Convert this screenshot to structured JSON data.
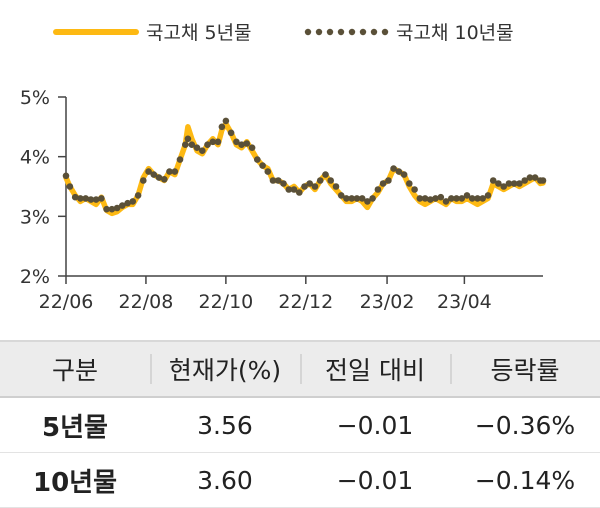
{
  "chart_data": {
    "type": "line",
    "legend": [
      {
        "name": "국고채 5년물",
        "style": "solid",
        "color": "#FDB913"
      },
      {
        "name": "국고채 10년물",
        "style": "dotted",
        "color": "#5a5038"
      }
    ],
    "legend_position": "top",
    "x_ticks": [
      "22/06",
      "22/08",
      "22/10",
      "22/12",
      "23/02",
      "23/04"
    ],
    "y_ticks": [
      "2%",
      "3%",
      "4%",
      "5%"
    ],
    "ylim": [
      2,
      5
    ],
    "xlim": [
      "2022-06-01",
      "2023-05-31"
    ],
    "grid": false,
    "series": [
      {
        "name": "국고채 5년물",
        "x": [
          "2022-06-01",
          "2022-06-04",
          "2022-06-08",
          "2022-06-12",
          "2022-06-16",
          "2022-06-20",
          "2022-06-24",
          "2022-06-28",
          "2022-07-02",
          "2022-07-06",
          "2022-07-10",
          "2022-07-14",
          "2022-07-18",
          "2022-07-22",
          "2022-07-26",
          "2022-07-30",
          "2022-08-03",
          "2022-08-07",
          "2022-08-11",
          "2022-08-15",
          "2022-08-19",
          "2022-08-23",
          "2022-08-27",
          "2022-08-31",
          "2022-09-02",
          "2022-09-05",
          "2022-09-09",
          "2022-09-13",
          "2022-09-17",
          "2022-09-21",
          "2022-09-25",
          "2022-09-28",
          "2022-10-01",
          "2022-10-05",
          "2022-10-09",
          "2022-10-13",
          "2022-10-17",
          "2022-10-21",
          "2022-10-25",
          "2022-10-29",
          "2022-11-02",
          "2022-11-06",
          "2022-11-10",
          "2022-11-14",
          "2022-11-18",
          "2022-11-22",
          "2022-11-26",
          "2022-11-30",
          "2022-12-04",
          "2022-12-08",
          "2022-12-12",
          "2022-12-16",
          "2022-12-20",
          "2022-12-24",
          "2022-12-28",
          "2023-01-01",
          "2023-01-05",
          "2023-01-09",
          "2023-01-13",
          "2023-01-17",
          "2023-01-21",
          "2023-01-25",
          "2023-01-29",
          "2023-02-02",
          "2023-02-06",
          "2023-02-10",
          "2023-02-14",
          "2023-02-18",
          "2023-02-22",
          "2023-02-26",
          "2023-03-02",
          "2023-03-06",
          "2023-03-10",
          "2023-03-14",
          "2023-03-18",
          "2023-03-22",
          "2023-03-26",
          "2023-03-30",
          "2023-04-03",
          "2023-04-07",
          "2023-04-11",
          "2023-04-15",
          "2023-04-19",
          "2023-04-23",
          "2023-04-27",
          "2023-05-01",
          "2023-05-05",
          "2023-05-09",
          "2023-05-13",
          "2023-05-17",
          "2023-05-21",
          "2023-05-25",
          "2023-05-29",
          "2023-05-31"
        ],
        "values": [
          3.65,
          3.5,
          3.35,
          3.25,
          3.3,
          3.25,
          3.2,
          3.32,
          3.1,
          3.05,
          3.08,
          3.15,
          3.2,
          3.2,
          3.35,
          3.65,
          3.8,
          3.7,
          3.65,
          3.6,
          3.75,
          3.7,
          3.95,
          4.2,
          4.5,
          4.3,
          4.1,
          4.05,
          4.2,
          4.3,
          4.2,
          4.45,
          4.55,
          4.4,
          4.2,
          4.15,
          4.25,
          4.1,
          3.95,
          3.85,
          3.8,
          3.6,
          3.6,
          3.55,
          3.45,
          3.5,
          3.4,
          3.5,
          3.55,
          3.45,
          3.6,
          3.7,
          3.55,
          3.45,
          3.35,
          3.25,
          3.25,
          3.3,
          3.25,
          3.15,
          3.3,
          3.4,
          3.55,
          3.6,
          3.8,
          3.75,
          3.7,
          3.5,
          3.35,
          3.25,
          3.2,
          3.25,
          3.3,
          3.25,
          3.2,
          3.3,
          3.25,
          3.25,
          3.3,
          3.25,
          3.2,
          3.25,
          3.3,
          3.55,
          3.5,
          3.45,
          3.5,
          3.55,
          3.5,
          3.55,
          3.6,
          3.65,
          3.55,
          3.56
        ]
      },
      {
        "name": "국고채 10년물",
        "x": [
          "2022-06-01",
          "2022-06-04",
          "2022-06-08",
          "2022-06-12",
          "2022-06-16",
          "2022-06-20",
          "2022-06-24",
          "2022-06-28",
          "2022-07-02",
          "2022-07-06",
          "2022-07-10",
          "2022-07-14",
          "2022-07-18",
          "2022-07-22",
          "2022-07-26",
          "2022-07-30",
          "2022-08-03",
          "2022-08-07",
          "2022-08-11",
          "2022-08-15",
          "2022-08-19",
          "2022-08-23",
          "2022-08-27",
          "2022-08-31",
          "2022-09-02",
          "2022-09-05",
          "2022-09-09",
          "2022-09-13",
          "2022-09-17",
          "2022-09-21",
          "2022-09-25",
          "2022-09-28",
          "2022-10-01",
          "2022-10-05",
          "2022-10-09",
          "2022-10-13",
          "2022-10-17",
          "2022-10-21",
          "2022-10-25",
          "2022-10-29",
          "2022-11-02",
          "2022-11-06",
          "2022-11-10",
          "2022-11-14",
          "2022-11-18",
          "2022-11-22",
          "2022-11-26",
          "2022-11-30",
          "2022-12-04",
          "2022-12-08",
          "2022-12-12",
          "2022-12-16",
          "2022-12-20",
          "2022-12-24",
          "2022-12-28",
          "2023-01-01",
          "2023-01-05",
          "2023-01-09",
          "2023-01-13",
          "2023-01-17",
          "2023-01-21",
          "2023-01-25",
          "2023-01-29",
          "2023-02-02",
          "2023-02-06",
          "2023-02-10",
          "2023-02-14",
          "2023-02-18",
          "2023-02-22",
          "2023-02-26",
          "2023-03-02",
          "2023-03-06",
          "2023-03-10",
          "2023-03-14",
          "2023-03-18",
          "2023-03-22",
          "2023-03-26",
          "2023-03-30",
          "2023-04-03",
          "2023-04-07",
          "2023-04-11",
          "2023-04-15",
          "2023-04-19",
          "2023-04-23",
          "2023-04-27",
          "2023-05-01",
          "2023-05-05",
          "2023-05-09",
          "2023-05-13",
          "2023-05-17",
          "2023-05-21",
          "2023-05-25",
          "2023-05-29",
          "2023-05-31"
        ],
        "values": [
          3.68,
          3.5,
          3.32,
          3.3,
          3.3,
          3.28,
          3.28,
          3.3,
          3.12,
          3.12,
          3.14,
          3.18,
          3.22,
          3.25,
          3.35,
          3.6,
          3.75,
          3.7,
          3.65,
          3.62,
          3.75,
          3.75,
          3.95,
          4.2,
          4.3,
          4.2,
          4.15,
          4.1,
          4.2,
          4.25,
          4.25,
          4.5,
          4.6,
          4.4,
          4.25,
          4.2,
          4.22,
          4.15,
          3.95,
          3.85,
          3.75,
          3.6,
          3.6,
          3.55,
          3.45,
          3.45,
          3.4,
          3.5,
          3.55,
          3.5,
          3.6,
          3.7,
          3.6,
          3.5,
          3.35,
          3.3,
          3.3,
          3.3,
          3.3,
          3.25,
          3.3,
          3.45,
          3.55,
          3.6,
          3.8,
          3.75,
          3.7,
          3.55,
          3.45,
          3.3,
          3.3,
          3.28,
          3.3,
          3.32,
          3.25,
          3.3,
          3.3,
          3.3,
          3.35,
          3.3,
          3.3,
          3.3,
          3.35,
          3.6,
          3.55,
          3.5,
          3.55,
          3.55,
          3.55,
          3.6,
          3.65,
          3.65,
          3.6,
          3.6
        ]
      }
    ]
  },
  "table": {
    "headers": [
      "구분",
      "현재가(%)",
      "전일 대비",
      "등락률"
    ],
    "rows": [
      [
        "5년물",
        "3.56",
        "−0.01",
        "−0.36%"
      ],
      [
        "10년물",
        "3.60",
        "−0.01",
        "−0.14%"
      ]
    ]
  }
}
